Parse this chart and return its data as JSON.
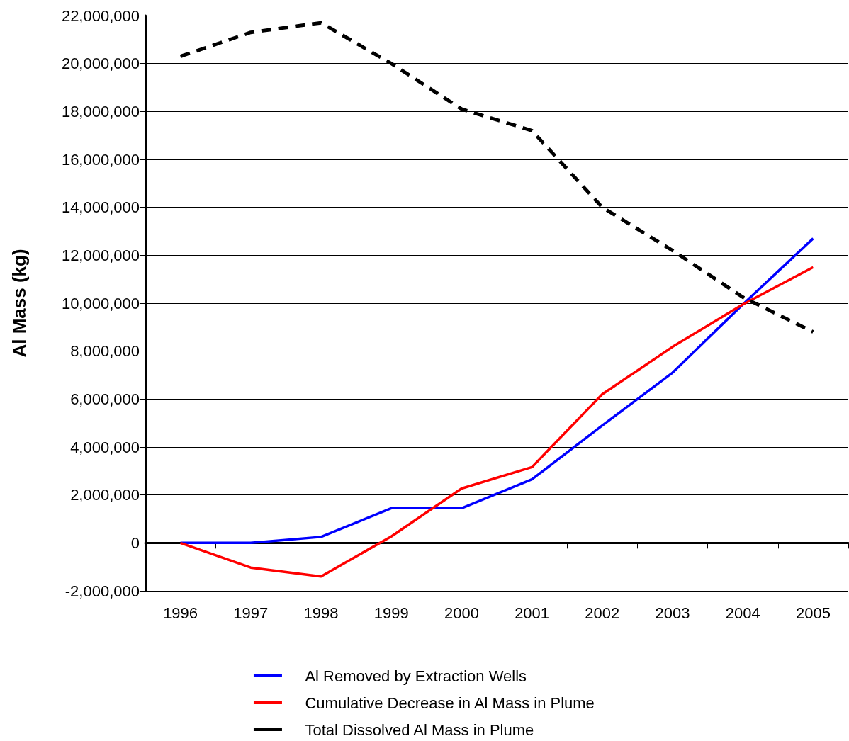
{
  "chart_data": {
    "type": "line",
    "ylabel": "Al Mass (kg)",
    "categories": [
      "1996",
      "1997",
      "1998",
      "1999",
      "2000",
      "2001",
      "2002",
      "2003",
      "2004",
      "2005"
    ],
    "series": [
      {
        "name": "Al Removed by Extraction Wells",
        "color": "#0000ff",
        "line_style": "solid",
        "values": [
          0,
          0,
          250000,
          1450000,
          1450000,
          2650000,
          4900000,
          7100000,
          9950000,
          12700000
        ]
      },
      {
        "name": "Cumulative Decrease in Al Mass in Plume",
        "color": "#ff0000",
        "line_style": "solid",
        "values": [
          0,
          -1030000,
          -1400000,
          270000,
          2270000,
          3160000,
          6200000,
          8180000,
          9950000,
          11500000
        ]
      },
      {
        "name": "Total Dissolved Al Mass in Plume",
        "color": "#000000",
        "line_style": "dashed",
        "values": [
          20300000,
          21300000,
          21700000,
          20000000,
          18100000,
          17200000,
          14000000,
          12200000,
          10250000,
          8800000
        ]
      }
    ],
    "ylim": [
      -2000000,
      22000000
    ],
    "yticks": [
      {
        "value": -2000000,
        "label": "-2,000,000"
      },
      0,
      {
        "value": 2000000,
        "label": "2,000,000"
      },
      {
        "value": 4000000,
        "label": "4,000,000"
      },
      {
        "value": 6000000,
        "label": "6,000,000"
      },
      {
        "value": 8000000,
        "label": "8,000,000"
      },
      {
        "value": 10000000,
        "label": "10,000,000"
      },
      {
        "value": 12000000,
        "label": "12,000,000"
      },
      {
        "value": 14000000,
        "label": "14,000,000"
      },
      {
        "value": 16000000,
        "label": "16,000,000"
      },
      {
        "value": 18000000,
        "label": "18,000,000"
      },
      {
        "value": 20000000,
        "label": "20,000,000"
      },
      {
        "value": 22000000,
        "label": "22,000,000"
      }
    ],
    "grid": "y",
    "legend": "bottom",
    "marker": "none"
  }
}
